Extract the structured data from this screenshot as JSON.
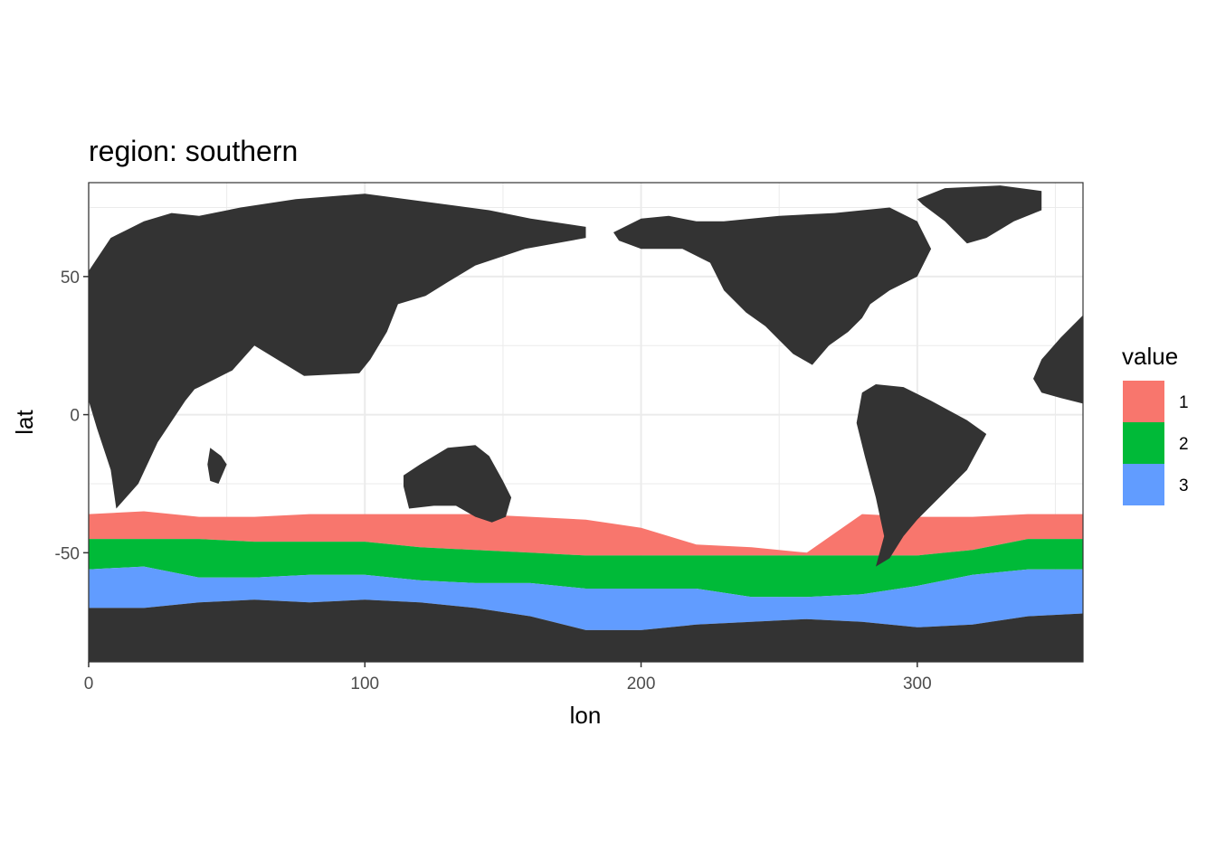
{
  "chart_data": {
    "type": "heatmap",
    "title": "region: southern",
    "xlabel": "lon",
    "ylabel": "lat",
    "xlim": [
      0,
      360
    ],
    "ylim": [
      -89.5,
      84
    ],
    "x_ticks": [
      0,
      100,
      200,
      300
    ],
    "y_ticks": [
      50,
      0,
      -50
    ],
    "x_tick_labels": [
      "0",
      "100",
      "200",
      "300"
    ],
    "y_tick_labels": [
      "50",
      "0",
      "-50"
    ],
    "grid": true,
    "land_color": "#333333",
    "legend": {
      "title": "value",
      "position": "right",
      "items": [
        {
          "label": "1",
          "color": "#F8766D"
        },
        {
          "label": "2",
          "color": "#00BA38"
        },
        {
          "label": "3",
          "color": "#619CFF"
        }
      ]
    },
    "bands": [
      {
        "value": "1",
        "lon": [
          0,
          20,
          40,
          60,
          80,
          100,
          120,
          140,
          160,
          180,
          200,
          220,
          240,
          260,
          280,
          300,
          320,
          340,
          360
        ],
        "north_lat": [
          -36,
          -35,
          -37,
          -37,
          -36,
          -36,
          -36,
          -36,
          -37,
          -38,
          -41,
          -47,
          -48,
          -50,
          -36,
          -37,
          -37,
          -36,
          -36
        ],
        "south_lat": [
          -45,
          -45,
          -45,
          -46,
          -46,
          -46,
          -48,
          -49,
          -50,
          -51,
          -51,
          -51,
          -51,
          -51,
          -51,
          -51,
          -49,
          -45,
          -45
        ]
      },
      {
        "value": "2",
        "lon": [
          0,
          20,
          40,
          60,
          80,
          100,
          120,
          140,
          160,
          180,
          200,
          220,
          240,
          260,
          280,
          300,
          320,
          340,
          360
        ],
        "north_lat": [
          -45,
          -45,
          -45,
          -46,
          -46,
          -46,
          -48,
          -49,
          -50,
          -51,
          -51,
          -51,
          -51,
          -51,
          -51,
          -51,
          -49,
          -45,
          -45
        ],
        "south_lat": [
          -56,
          -55,
          -59,
          -59,
          -58,
          -58,
          -60,
          -61,
          -61,
          -63,
          -63,
          -63,
          -66,
          -66,
          -65,
          -62,
          -58,
          -56,
          -56
        ]
      },
      {
        "value": "3",
        "lon": [
          0,
          20,
          40,
          60,
          80,
          100,
          120,
          140,
          160,
          180,
          200,
          220,
          240,
          260,
          280,
          300,
          320,
          340,
          360
        ],
        "north_lat": [
          -56,
          -55,
          -59,
          -59,
          -58,
          -58,
          -60,
          -61,
          -61,
          -63,
          -63,
          -63,
          -66,
          -66,
          -65,
          -62,
          -58,
          -56,
          -56
        ],
        "south_lat": [
          -70,
          -70,
          -68,
          -67,
          -68,
          -67,
          -68,
          -70,
          -73,
          -78,
          -78,
          -76,
          -75,
          -74,
          -75,
          -77,
          -76,
          -73,
          -72
        ]
      }
    ],
    "land": [
      {
        "name": "eurasia-africa",
        "lon": [
          0,
          8,
          20,
          30,
          40,
          55,
          75,
          100,
          130,
          145,
          160,
          180,
          180,
          158,
          140,
          130,
          122,
          112,
          108,
          102,
          98,
          78,
          60,
          52,
          40,
          25,
          12,
          5,
          0,
          0,
          10,
          20,
          30,
          40,
          52,
          60,
          72,
          80,
          90,
          100,
          100,
          92,
          80,
          70,
          50,
          43,
          35,
          25,
          18,
          10,
          8,
          3,
          0
        ],
        "lat": [
          52,
          64,
          70,
          73,
          72,
          75,
          78,
          80,
          76,
          74,
          71,
          68,
          64,
          60,
          54,
          48,
          43,
          40,
          30,
          20,
          15,
          14,
          25,
          16,
          10,
          3,
          -2,
          2,
          7,
          30,
          34,
          40,
          45,
          48,
          44,
          37,
          40,
          30,
          26,
          22,
          20,
          22,
          28,
          25,
          25,
          15,
          5,
          -10,
          -25,
          -34,
          -20,
          -5,
          5
        ]
      },
      {
        "name": "australia",
        "lon": [
          114,
          120,
          130,
          140,
          145,
          150,
          153,
          151,
          146,
          140,
          133,
          125,
          116,
          114
        ],
        "lat": [
          -22,
          -18,
          -12,
          -11,
          -15,
          -24,
          -30,
          -37,
          -39,
          -37,
          -33,
          -33,
          -34,
          -26
        ]
      },
      {
        "name": "north-america",
        "lon": [
          190,
          200,
          210,
          220,
          230,
          250,
          270,
          290,
          300,
          305,
          300,
          290,
          283,
          280,
          275,
          268,
          262,
          255,
          250,
          245,
          238,
          230,
          225,
          215,
          200,
          192
        ],
        "lat": [
          66,
          71,
          72,
          70,
          70,
          72,
          73,
          75,
          70,
          60,
          50,
          45,
          40,
          35,
          30,
          25,
          18,
          22,
          27,
          32,
          37,
          45,
          55,
          60,
          60,
          63
        ]
      },
      {
        "name": "south-america",
        "lon": [
          280,
          285,
          295,
          305,
          318,
          325,
          318,
          310,
          300,
          295,
          290,
          285,
          288,
          285,
          281,
          278
        ],
        "lat": [
          8,
          11,
          10,
          5,
          -2,
          -7,
          -20,
          -28,
          -38,
          -44,
          -52,
          -55,
          -44,
          -30,
          -15,
          -3
        ]
      },
      {
        "name": "greenland",
        "lon": [
          300,
          310,
          330,
          345,
          345,
          335,
          325,
          318,
          310,
          302
        ],
        "lat": [
          78,
          82,
          83,
          81,
          74,
          70,
          64,
          62,
          70,
          76
        ]
      },
      {
        "name": "madagascar",
        "lon": [
          44,
          48,
          50,
          47,
          44,
          43
        ],
        "lat": [
          -12,
          -15,
          -18,
          -25,
          -24,
          -18
        ]
      },
      {
        "name": "west-africa-edge",
        "lon": [
          345,
          352,
          360,
          360,
          352,
          345,
          342
        ],
        "lat": [
          20,
          28,
          36,
          4,
          6,
          8,
          13
        ]
      },
      {
        "name": "antarctica",
        "lon": [
          0,
          20,
          40,
          60,
          80,
          100,
          120,
          140,
          160,
          180,
          200,
          220,
          240,
          260,
          280,
          300,
          320,
          340,
          360,
          360,
          0
        ],
        "lat": [
          -70,
          -70,
          -68,
          -67,
          -68,
          -67,
          -68,
          -70,
          -73,
          -78,
          -78,
          -76,
          -75,
          -74,
          -75,
          -77,
          -76,
          -73,
          -72,
          -89.5,
          -89.5
        ]
      }
    ]
  }
}
